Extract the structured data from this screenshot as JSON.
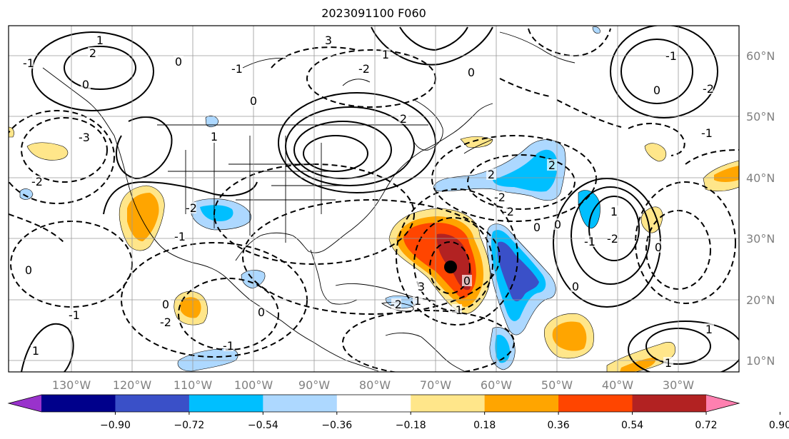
{
  "title": "2023091100 F060",
  "map": {
    "lon_labels": [
      "130°W",
      "120°W",
      "110°W",
      "100°W",
      "90°W",
      "80°W",
      "70°W",
      "60°W",
      "50°W",
      "40°W",
      "30°W"
    ],
    "lat_labels": [
      "60°N",
      "50°N",
      "40°N",
      "30°N",
      "20°N",
      "10°N"
    ],
    "contour_labels": [
      "2",
      "1",
      "0",
      "-1",
      "-2",
      "-3",
      "3",
      "1",
      "0",
      "2",
      "-2",
      "0",
      "-1",
      "0",
      "1",
      "-1",
      "-2",
      "0",
      "-1",
      "0",
      "-2",
      "0",
      "1",
      "-1",
      "-2",
      "-1",
      "0",
      "1",
      "3",
      "-2",
      "2",
      "2",
      "-2",
      "0",
      "1",
      "0",
      "-1",
      "-2",
      "0",
      "0",
      "-1",
      "-2",
      "-1",
      "0",
      "1",
      "1"
    ],
    "storm_marker": "center-dot",
    "colors": {
      "land_outline": "#000000",
      "grid": "#999999",
      "label": "#808080"
    }
  },
  "colorbar": {
    "ticks": [
      "−0.90",
      "−0.72",
      "−0.54",
      "−0.36",
      "−0.18",
      "0.18",
      "0.36",
      "0.54",
      "0.72",
      "0.90"
    ],
    "colors": [
      "#9932cc",
      "#00008b",
      "#3a50c8",
      "#00bfff",
      "#add8ff",
      "#ffffff",
      "#ffe68a",
      "#ffa500",
      "#ff4500",
      "#b22222",
      "#ff80b0"
    ]
  }
}
